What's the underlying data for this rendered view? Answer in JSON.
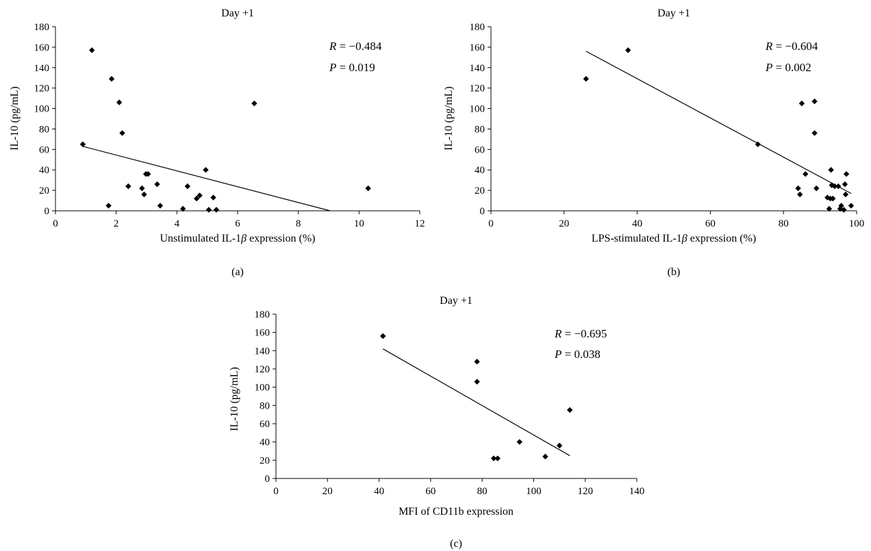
{
  "charts": [
    {
      "chart_data": {
        "type": "scatter",
        "title": "Day +1",
        "xlabel_pre": "Unstimulated IL-1",
        "xlabel_sym": "β",
        "xlabel_post": " expression (%)",
        "ylabel": "IL-10 (pg/mL)",
        "xlim": [
          0,
          12
        ],
        "xticks": [
          0,
          2,
          4,
          6,
          8,
          10,
          12
        ],
        "ylim": [
          0,
          180
        ],
        "yticks": [
          0,
          20,
          40,
          60,
          80,
          100,
          120,
          140,
          160,
          180
        ],
        "points": [
          [
            0.9,
            65
          ],
          [
            1.2,
            157
          ],
          [
            1.75,
            5
          ],
          [
            1.85,
            129
          ],
          [
            2.1,
            106
          ],
          [
            2.2,
            76
          ],
          [
            2.4,
            24
          ],
          [
            2.85,
            22
          ],
          [
            2.92,
            16
          ],
          [
            2.98,
            36
          ],
          [
            3.05,
            36
          ],
          [
            3.35,
            26
          ],
          [
            3.45,
            5
          ],
          [
            4.2,
            2
          ],
          [
            4.35,
            24
          ],
          [
            4.65,
            12
          ],
          [
            4.75,
            15
          ],
          [
            4.95,
            40
          ],
          [
            5.05,
            1
          ],
          [
            5.2,
            13
          ],
          [
            5.3,
            1
          ],
          [
            6.55,
            105
          ],
          [
            10.3,
            22
          ]
        ],
        "fit_line": [
          [
            0.9,
            63
          ],
          [
            9.05,
            0
          ]
        ],
        "stats": {
          "r_label": "R",
          "r_value": " = −0.484",
          "p_label": "P",
          "p_value": " = 0.019"
        },
        "grid": false
      },
      "caption": "(a)"
    },
    {
      "chart_data": {
        "type": "scatter",
        "title": "Day +1",
        "xlabel_pre": "LPS-stimulated IL-1",
        "xlabel_sym": "β",
        "xlabel_post": " expression (%)",
        "ylabel": "IL-10 (pg/mL)",
        "xlim": [
          0,
          100
        ],
        "xticks": [
          0,
          20,
          40,
          60,
          80,
          100
        ],
        "ylim": [
          0,
          180
        ],
        "yticks": [
          0,
          20,
          40,
          60,
          80,
          100,
          120,
          140,
          160,
          180
        ],
        "points": [
          [
            26,
            129
          ],
          [
            37.5,
            157
          ],
          [
            73,
            65
          ],
          [
            84,
            22
          ],
          [
            84.5,
            16
          ],
          [
            85,
            105
          ],
          [
            86,
            36
          ],
          [
            88.5,
            107
          ],
          [
            88.5,
            76
          ],
          [
            89,
            22
          ],
          [
            92,
            13
          ],
          [
            92.5,
            2
          ],
          [
            92.8,
            12
          ],
          [
            93,
            40
          ],
          [
            93.2,
            25
          ],
          [
            93.5,
            12
          ],
          [
            94,
            24
          ],
          [
            95,
            24
          ],
          [
            95.5,
            2
          ],
          [
            95.8,
            5
          ],
          [
            96.5,
            1
          ],
          [
            96.8,
            26
          ],
          [
            97,
            16
          ],
          [
            97.2,
            36
          ],
          [
            98.5,
            5
          ]
        ],
        "fit_line": [
          [
            26,
            156
          ],
          [
            98.5,
            17
          ]
        ],
        "stats": {
          "r_label": "R",
          "r_value": " = −0.604",
          "p_label": "P",
          "p_value": " = 0.002"
        },
        "grid": false
      },
      "caption": "(b)"
    },
    {
      "chart_data": {
        "type": "scatter",
        "title": "Day +1",
        "xlabel_pre": "MFI of CD11b expression",
        "xlabel_sym": "",
        "xlabel_post": "",
        "ylabel": "IL-10 (pg/mL)",
        "xlim": [
          0,
          140
        ],
        "xticks": [
          0,
          20,
          40,
          60,
          80,
          100,
          120,
          140
        ],
        "ylim": [
          0,
          180
        ],
        "yticks": [
          0,
          20,
          40,
          60,
          80,
          100,
          120,
          140,
          160,
          180
        ],
        "points": [
          [
            41.5,
            156
          ],
          [
            78,
            128
          ],
          [
            78,
            106
          ],
          [
            84.5,
            22
          ],
          [
            86,
            22
          ],
          [
            94.5,
            40
          ],
          [
            104.5,
            24
          ],
          [
            110,
            36
          ],
          [
            114,
            75
          ]
        ],
        "fit_line": [
          [
            41.5,
            142
          ],
          [
            114,
            25
          ]
        ],
        "stats": {
          "r_label": "R",
          "r_value": " = −0.695",
          "p_label": "P",
          "p_value": " = 0.038"
        },
        "grid": false
      },
      "caption": "(c)"
    }
  ]
}
